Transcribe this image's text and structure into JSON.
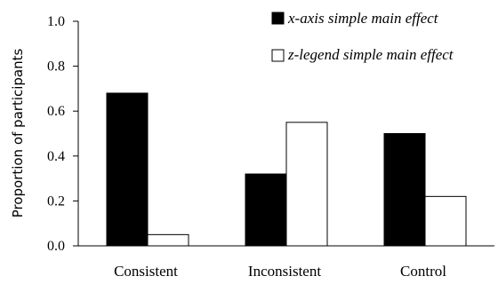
{
  "chart_data": {
    "type": "bar",
    "categories": [
      "Consistent",
      "Inconsistent",
      "Control"
    ],
    "series": [
      {
        "name": "x-axis simple main effect",
        "values": [
          0.68,
          0.32,
          0.5
        ],
        "color": "#000000"
      },
      {
        "name": "z-legend simple main effect",
        "values": [
          0.05,
          0.55,
          0.22
        ],
        "color": "#ffffff"
      }
    ],
    "xlabel": "",
    "ylabel": "Proportion of participants",
    "ylim": [
      0,
      1.0
    ],
    "yticks": [
      "0.0",
      "0.2",
      "0.4",
      "0.6",
      "0.8",
      "1.0"
    ],
    "grid": false,
    "legend_position": "top-right"
  }
}
